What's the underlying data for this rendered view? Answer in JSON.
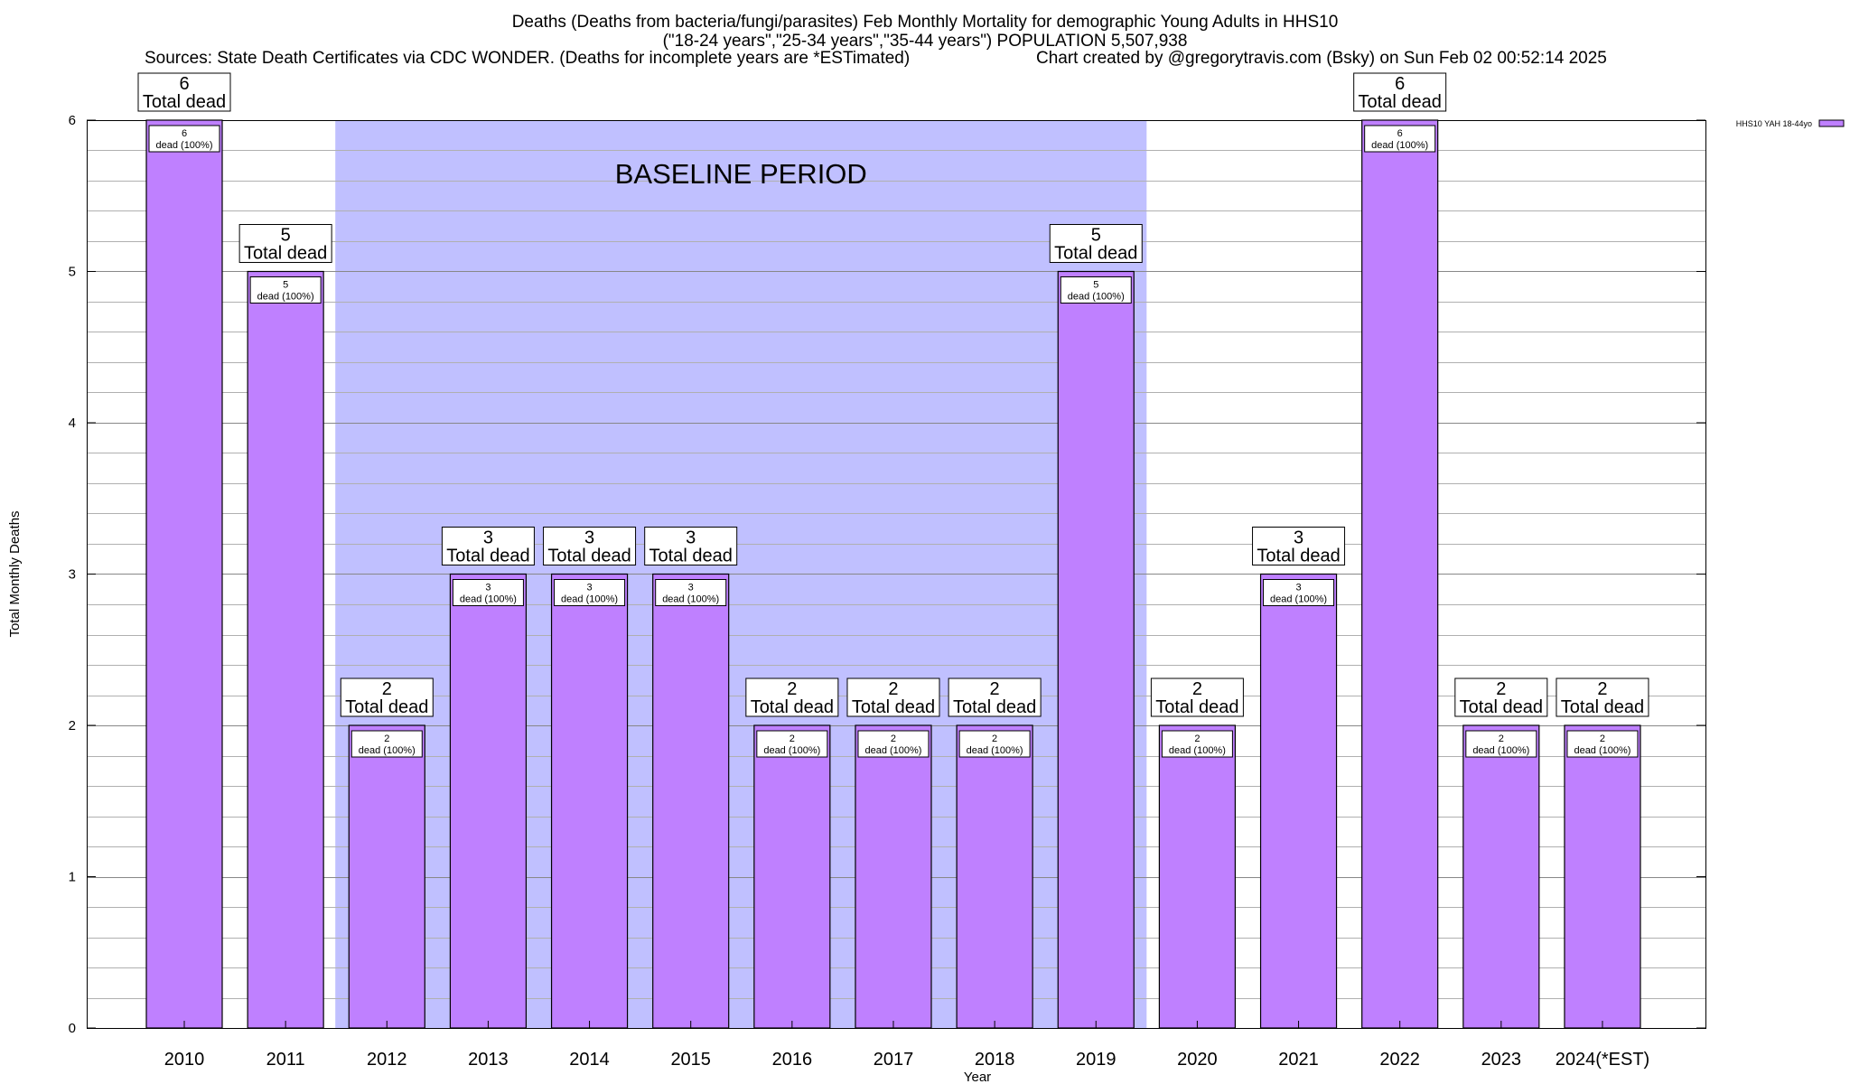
{
  "header": {
    "title_line1": "Deaths (Deaths from bacteria/fungi/parasites) Feb Monthly Mortality for demographic Young Adults in HHS10",
    "title_line2": "(\"18-24 years\",\"25-34 years\",\"35-44 years\") POPULATION 5,507,938",
    "sources": "Sources: State Death Certificates via CDC WONDER. (Deaths for incomplete years are *ESTimated)",
    "credit": "Chart created by @gregorytravis.com (Bsky) on Sun Feb 02 00:52:14 2025"
  },
  "chart_data": {
    "type": "bar",
    "xlabel": "Year",
    "ylabel": "Total Monthly Deaths",
    "ylim": [
      0,
      6
    ],
    "y_ticks": [
      0,
      1,
      2,
      3,
      4,
      5,
      6
    ],
    "grid": true,
    "categories": [
      "2010",
      "2011",
      "2012",
      "2013",
      "2014",
      "2015",
      "2016",
      "2017",
      "2018",
      "2019",
      "2020",
      "2021",
      "2022",
      "2023",
      "2024(*EST)"
    ],
    "series": [
      {
        "name": "HHS10 YAH 18-44yo",
        "values": [
          6,
          5,
          2,
          3,
          3,
          3,
          2,
          2,
          2,
          5,
          2,
          3,
          6,
          2,
          2
        ]
      }
    ],
    "total_label_suffix": "Total dead",
    "inner_label_suffix": "dead (100%)",
    "baseline": {
      "label": "BASELINE PERIOD",
      "from": "2012",
      "to": "2019"
    },
    "legend_position": "top-right",
    "colors": {
      "bar": "#bf80ff",
      "baseline_band": "#c0c0ff"
    }
  }
}
